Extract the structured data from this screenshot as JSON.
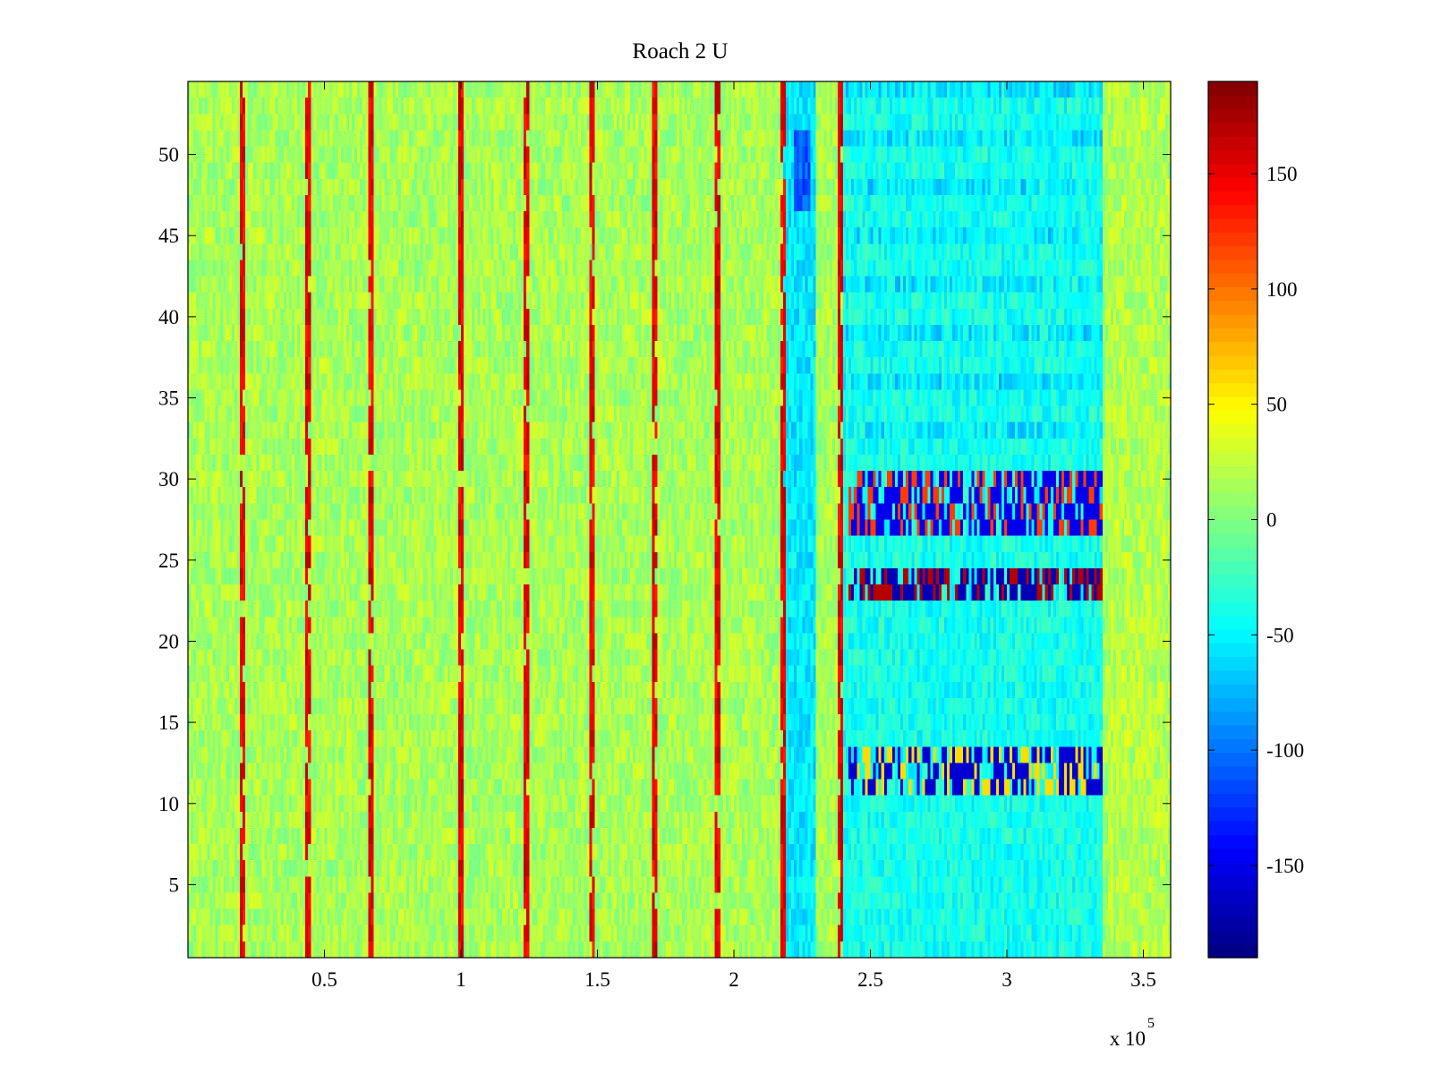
{
  "chart_data": {
    "type": "heatmap",
    "title": "Roach 2 U",
    "xlabel": "",
    "ylabel": "",
    "xlim": [
      0,
      360000
    ],
    "ylim": [
      0.5,
      54.5
    ],
    "x_multiplier_label": "x 10",
    "x_multiplier_exponent": "5",
    "x_ticks": [
      {
        "value": 50000,
        "label": "0.5"
      },
      {
        "value": 100000,
        "label": "1"
      },
      {
        "value": 150000,
        "label": "1.5"
      },
      {
        "value": 200000,
        "label": "2"
      },
      {
        "value": 250000,
        "label": "2.5"
      },
      {
        "value": 300000,
        "label": "3"
      },
      {
        "value": 350000,
        "label": "3.5"
      }
    ],
    "y_ticks": [
      {
        "value": 5,
        "label": "5"
      },
      {
        "value": 10,
        "label": "10"
      },
      {
        "value": 15,
        "label": "15"
      },
      {
        "value": 20,
        "label": "20"
      },
      {
        "value": 25,
        "label": "25"
      },
      {
        "value": 30,
        "label": "30"
      },
      {
        "value": 35,
        "label": "35"
      },
      {
        "value": 40,
        "label": "40"
      },
      {
        "value": 45,
        "label": "45"
      },
      {
        "value": 50,
        "label": "50"
      }
    ],
    "colorbar": {
      "colormap": "jet",
      "clim": [
        -190,
        190
      ],
      "ticks": [
        {
          "value": 150,
          "label": "150"
        },
        {
          "value": 100,
          "label": "100"
        },
        {
          "value": 50,
          "label": "50"
        },
        {
          "value": 0,
          "label": "0"
        },
        {
          "value": -50,
          "label": "-50"
        },
        {
          "value": -100,
          "label": "-100"
        },
        {
          "value": -150,
          "label": "-150"
        }
      ]
    },
    "baseline_value": 15,
    "periodic_spikes": {
      "x": [
        20000,
        44000,
        67000,
        100000,
        124000,
        148000,
        171000,
        194000,
        218000,
        239000
      ],
      "value": 150,
      "note": "thin vertical high-value streaks across most rows"
    },
    "regions": [
      {
        "x": [
          218000,
          230000
        ],
        "y": [
          0.5,
          54.5
        ],
        "value": -55
      },
      {
        "x": [
          240000,
          335000
        ],
        "y": [
          0.5,
          54.5
        ],
        "value": -40
      },
      {
        "x": [
          222000,
          228000
        ],
        "y": [
          47,
          51
        ],
        "value": -110
      },
      {
        "x": [
          242000,
          335000
        ],
        "y": [
          23,
          24
        ],
        "value": "alternating -170 / 170"
      },
      {
        "x": [
          242000,
          335000
        ],
        "y": [
          27,
          30
        ],
        "value": "alternating -150 / 120"
      },
      {
        "x": [
          242000,
          335000
        ],
        "y": [
          11,
          13
        ],
        "value": "alternating -160 / 60"
      },
      {
        "x": [
          337000,
          360000
        ],
        "y": [
          0.5,
          54.5
        ],
        "value": 20
      }
    ]
  }
}
